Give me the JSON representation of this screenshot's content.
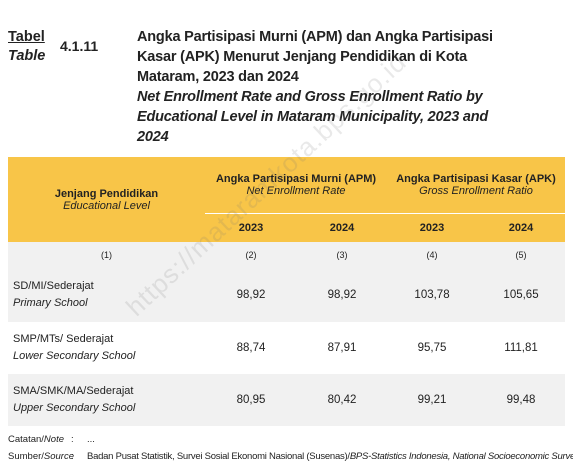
{
  "header": {
    "label_id": "Tabel",
    "label_en": "Table",
    "number": "4.1.11",
    "title_id": [
      "Angka Partisipasi Murni (APM) dan Angka Partisipasi",
      "Kasar (APK) Menurut Jenjang Pendidikan di Kota",
      "Mataram, 2023 dan 2024"
    ],
    "title_en": [
      "Net Enrollment Rate and Gross Enrollment Ratio by",
      "Educational Level in Mataram Municipality, 2023 and",
      "2024"
    ]
  },
  "table": {
    "col1_id": "Jenjang Pendidikan",
    "col1_en": "Educational Level",
    "group1_id": "Angka Partisipasi Murni (APM)",
    "group1_en": "Net Enrollment Rate",
    "group2_id": "Angka Partisipasi Kasar (APK)",
    "group2_en": "Gross Enrollment Ratio",
    "years": [
      "2023",
      "2024",
      "2023",
      "2024"
    ],
    "numbers": [
      "(1)",
      "(2)",
      "(3)",
      "(4)",
      "(5)"
    ],
    "rows": [
      {
        "name_id": "SD/MI/Sederajat",
        "name_en": "Primary School",
        "values": [
          "98,92",
          "98,92",
          "103,78",
          "105,65"
        ]
      },
      {
        "name_id": "SMP/MTs/ Sederajat",
        "name_en": "Lower Secondary School",
        "values": [
          "88,74",
          "87,91",
          "95,75",
          "111,81"
        ]
      },
      {
        "name_id": "SMA/SMK/MA/Sederajat",
        "name_en": "Upper Secondary School",
        "values": [
          "80,95",
          "80,42",
          "99,21",
          "99,48"
        ]
      }
    ]
  },
  "notes": {
    "note_label_id": "Catatan/",
    "note_label_en": "Note",
    "note_sep": ":",
    "note_text": "...",
    "source_label_id": "Sumber/",
    "source_label_en": "Source",
    "source_sep": ":",
    "source_text_id": "Badan Pusat Statistik, Survei Sosial Ekonomi Nasional (Susenas)/",
    "source_text_en": "BPS-Statistics Indonesia, National Socioeconomic Survey"
  },
  "watermark": "https://mataramkota.bps.go.id"
}
